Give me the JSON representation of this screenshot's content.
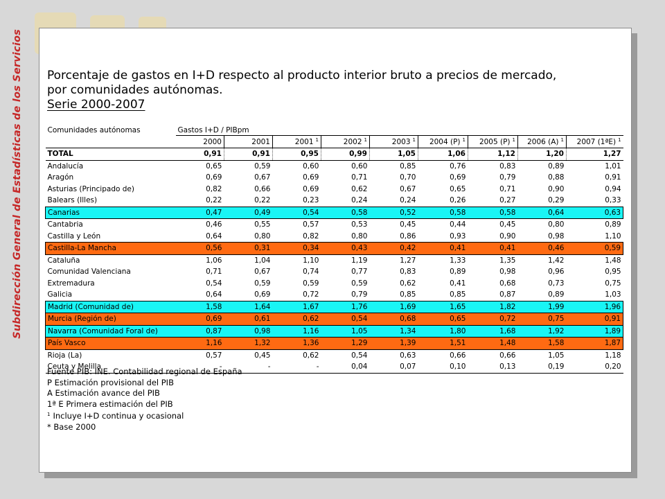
{
  "side_title": "Subdirección General de Estadísticas de los Servicios",
  "title_lines": [
    "Porcentaje de gastos en I+D respecto al producto interior bruto a precios de mercado,",
    "por comunidades autónomas.",
    "Serie 2000-2007"
  ],
  "table": {
    "col_header": "Comunidades autónomas",
    "group_header": "Gastos I+D / PIBpm",
    "years": [
      {
        "label": "2000",
        "note": ""
      },
      {
        "label": "2001",
        "note": ""
      },
      {
        "label": "2001",
        "note": "1"
      },
      {
        "label": "2002",
        "note": "1"
      },
      {
        "label": "2003",
        "note": "1"
      },
      {
        "label": "2004 (P)",
        "note": "1"
      },
      {
        "label": "2005 (P)",
        "note": "1"
      },
      {
        "label": "2006 (A)",
        "note": "1"
      },
      {
        "label": "2007 (1ªE)",
        "note": "1"
      }
    ],
    "total": {
      "name": "TOTAL",
      "values": [
        "0,91",
        "0,91",
        "0,95",
        "0,99",
        "1,05",
        "1,06",
        "1,12",
        "1,20",
        "1,27"
      ]
    },
    "rows": [
      {
        "name": "Andalucía",
        "highlight": "",
        "values": [
          "0,65",
          "0,59",
          "0,60",
          "0,60",
          "0,85",
          "0,76",
          "0,83",
          "0,89",
          "1,01"
        ]
      },
      {
        "name": "Aragón",
        "highlight": "",
        "values": [
          "0,69",
          "0,67",
          "0,69",
          "0,71",
          "0,70",
          "0,69",
          "0,79",
          "0,88",
          "0,91"
        ]
      },
      {
        "name": "Asturias (Principado de)",
        "highlight": "",
        "values": [
          "0,82",
          "0,66",
          "0,69",
          "0,62",
          "0,67",
          "0,65",
          "0,71",
          "0,90",
          "0,94"
        ]
      },
      {
        "name": "Balears (Illes)",
        "highlight": "",
        "values": [
          "0,22",
          "0,22",
          "0,23",
          "0,24",
          "0,24",
          "0,26",
          "0,27",
          "0,29",
          "0,33"
        ]
      },
      {
        "name": "Canarias",
        "highlight": "cyan",
        "values": [
          "0,47",
          "0,49",
          "0,54",
          "0,58",
          "0,52",
          "0,58",
          "0,58",
          "0,64",
          "0,63"
        ]
      },
      {
        "name": "Cantabria",
        "highlight": "",
        "values": [
          "0,46",
          "0,55",
          "0,57",
          "0,53",
          "0,45",
          "0,44",
          "0,45",
          "0,80",
          "0,89"
        ]
      },
      {
        "name": "Castilla y León",
        "highlight": "",
        "values": [
          "0,64",
          "0,80",
          "0,82",
          "0,80",
          "0,86",
          "0,93",
          "0,90",
          "0,98",
          "1,10"
        ]
      },
      {
        "name": "Castilla-La Mancha",
        "highlight": "orange",
        "values": [
          "0,56",
          "0,31",
          "0,34",
          "0,43",
          "0,42",
          "0,41",
          "0,41",
          "0,46",
          "0,59"
        ]
      },
      {
        "name": "Cataluña",
        "highlight": "",
        "values": [
          "1,06",
          "1,04",
          "1,10",
          "1,19",
          "1,27",
          "1,33",
          "1,35",
          "1,42",
          "1,48"
        ]
      },
      {
        "name": "Comunidad Valenciana",
        "highlight": "",
        "values": [
          "0,71",
          "0,67",
          "0,74",
          "0,77",
          "0,83",
          "0,89",
          "0,98",
          "0,96",
          "0,95"
        ]
      },
      {
        "name": "Extremadura",
        "highlight": "",
        "values": [
          "0,54",
          "0,59",
          "0,59",
          "0,59",
          "0,62",
          "0,41",
          "0,68",
          "0,73",
          "0,75"
        ]
      },
      {
        "name": "Galicia",
        "highlight": "",
        "values": [
          "0,64",
          "0,69",
          "0,72",
          "0,79",
          "0,85",
          "0,85",
          "0,87",
          "0,89",
          "1,03"
        ]
      },
      {
        "name": "Madrid (Comunidad de)",
        "highlight": "cyan",
        "values": [
          "1,58",
          "1,64",
          "1,67",
          "1,76",
          "1,69",
          "1,65",
          "1,82",
          "1,99",
          "1,96"
        ]
      },
      {
        "name": "Murcia (Región de)",
        "highlight": "orange",
        "values": [
          "0,69",
          "0,61",
          "0,62",
          "0,54",
          "0,68",
          "0,65",
          "0,72",
          "0,75",
          "0,91"
        ]
      },
      {
        "name": "Navarra (Comunidad Foral de)",
        "highlight": "cyan",
        "values": [
          "0,87",
          "0,98",
          "1,16",
          "1,05",
          "1,34",
          "1,80",
          "1,68",
          "1,92",
          "1,89"
        ]
      },
      {
        "name": "País Vasco",
        "highlight": "orange",
        "values": [
          "1,16",
          "1,32",
          "1,36",
          "1,29",
          "1,39",
          "1,51",
          "1,48",
          "1,58",
          "1,87"
        ]
      },
      {
        "name": "Rioja (La)",
        "highlight": "",
        "values": [
          "0,57",
          "0,45",
          "0,62",
          "0,54",
          "0,63",
          "0,66",
          "0,66",
          "1,05",
          "1,18"
        ]
      },
      {
        "name": "Ceuta y Melilla",
        "highlight": "",
        "values": [
          "-",
          "-",
          "-",
          "0,04",
          "0,07",
          "0,10",
          "0,13",
          "0,19",
          "0,20"
        ]
      }
    ]
  },
  "notes": [
    {
      "sup": "",
      "text": "Fuente PIB: INE. Contabilidad regional de España"
    },
    {
      "sup": "",
      "text": "P Estimación provisional del PIB"
    },
    {
      "sup": "",
      "text": "A Estimación avance del PIB"
    },
    {
      "sup": "",
      "text": "1ª E Primera estimación del PIB"
    },
    {
      "sup": "1",
      "text": "Incluye I+D continua y ocasional"
    },
    {
      "sup": "",
      "text": "* Base 2000"
    }
  ],
  "colors": {
    "cyan_highlight": "#19f5f5",
    "orange_highlight": "#ff6a12",
    "side_title": "#c62828"
  }
}
